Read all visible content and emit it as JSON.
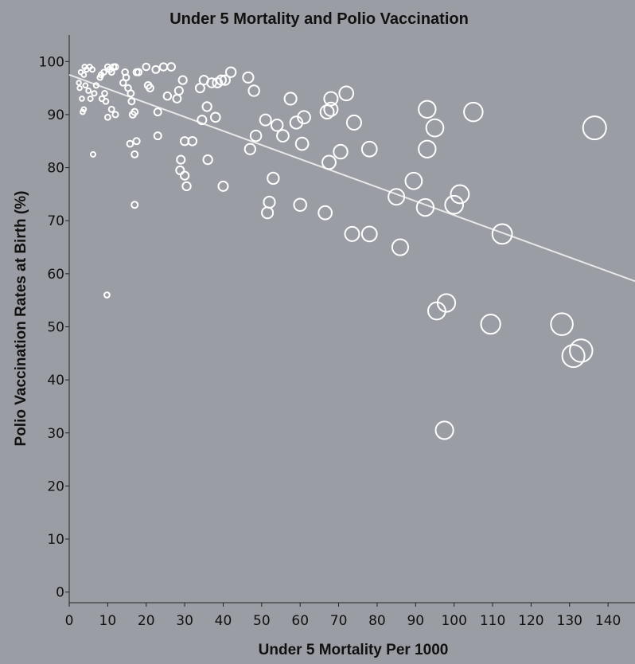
{
  "chart_data": {
    "type": "scatter",
    "title": "Under 5 Mortality and Polio Vaccination",
    "xlabel": "Under 5 Mortality Per 1000",
    "ylabel": "Polio Vaccination Rates at Birth (%)",
    "xlim": [
      0,
      147
    ],
    "ylim": [
      -2,
      105
    ],
    "x_ticks": [
      0,
      10,
      20,
      30,
      40,
      50,
      60,
      70,
      80,
      90,
      100,
      110,
      120,
      130,
      140
    ],
    "y_ticks": [
      0,
      10,
      20,
      30,
      40,
      50,
      60,
      70,
      80,
      90,
      100
    ],
    "grid": false,
    "marker": "hollow circle, size increases with x",
    "colors": {
      "background": "#9a9da4",
      "marker": "#ffffff",
      "trendline": "#e8e8e8",
      "text": "#111111"
    },
    "trendline": {
      "x": [
        0,
        147
      ],
      "y": [
        97.5,
        58.6
      ]
    },
    "points": [
      {
        "x": 2.5,
        "y": 96
      },
      {
        "x": 2.7,
        "y": 95
      },
      {
        "x": 3,
        "y": 98
      },
      {
        "x": 3.3,
        "y": 93
      },
      {
        "x": 3.8,
        "y": 97.5
      },
      {
        "x": 4,
        "y": 99
      },
      {
        "x": 4.2,
        "y": 95.5
      },
      {
        "x": 4.5,
        "y": 98.5
      },
      {
        "x": 5,
        "y": 94.5
      },
      {
        "x": 5.3,
        "y": 99
      },
      {
        "x": 5.5,
        "y": 93
      },
      {
        "x": 6,
        "y": 98.5
      },
      {
        "x": 6.5,
        "y": 94
      },
      {
        "x": 7,
        "y": 95.5
      },
      {
        "x": 8,
        "y": 97
      },
      {
        "x": 8.3,
        "y": 97.5
      },
      {
        "x": 8.5,
        "y": 93
      },
      {
        "x": 9,
        "y": 98
      },
      {
        "x": 9.2,
        "y": 94
      },
      {
        "x": 9.5,
        "y": 92.5
      },
      {
        "x": 10,
        "y": 99
      },
      {
        "x": 10.5,
        "y": 98.5
      },
      {
        "x": 11,
        "y": 98
      },
      {
        "x": 11.5,
        "y": 99
      },
      {
        "x": 12,
        "y": 99
      },
      {
        "x": 3.5,
        "y": 90.5
      },
      {
        "x": 3.8,
        "y": 91
      },
      {
        "x": 6.2,
        "y": 82.5
      },
      {
        "x": 8,
        "y": 97
      },
      {
        "x": 10,
        "y": 89.5
      },
      {
        "x": 11,
        "y": 91
      },
      {
        "x": 12,
        "y": 90
      },
      {
        "x": 9.8,
        "y": 56
      },
      {
        "x": 14,
        "y": 96
      },
      {
        "x": 14.5,
        "y": 98
      },
      {
        "x": 14.8,
        "y": 97
      },
      {
        "x": 15.3,
        "y": 95
      },
      {
        "x": 16,
        "y": 94
      },
      {
        "x": 16.5,
        "y": 90
      },
      {
        "x": 17,
        "y": 90.5
      },
      {
        "x": 17,
        "y": 82.5
      },
      {
        "x": 17.5,
        "y": 85
      },
      {
        "x": 17.5,
        "y": 98
      },
      {
        "x": 15.8,
        "y": 84.5
      },
      {
        "x": 17,
        "y": 73
      },
      {
        "x": 18,
        "y": 98
      },
      {
        "x": 16.2,
        "y": 92.5
      },
      {
        "x": 20,
        "y": 99
      },
      {
        "x": 20.5,
        "y": 95.5
      },
      {
        "x": 21,
        "y": 95
      },
      {
        "x": 22.5,
        "y": 98.5
      },
      {
        "x": 23,
        "y": 90.5
      },
      {
        "x": 23,
        "y": 86
      },
      {
        "x": 24.5,
        "y": 99
      },
      {
        "x": 25.5,
        "y": 93.5
      },
      {
        "x": 26.5,
        "y": 99
      },
      {
        "x": 28,
        "y": 93
      },
      {
        "x": 28.5,
        "y": 94.5
      },
      {
        "x": 29,
        "y": 81.5
      },
      {
        "x": 29.5,
        "y": 96.5
      },
      {
        "x": 28.8,
        "y": 79.5
      },
      {
        "x": 30,
        "y": 85
      },
      {
        "x": 30,
        "y": 78.5
      },
      {
        "x": 30.5,
        "y": 76.5
      },
      {
        "x": 32,
        "y": 85
      },
      {
        "x": 34,
        "y": 95
      },
      {
        "x": 34.5,
        "y": 89
      },
      {
        "x": 35,
        "y": 96.5
      },
      {
        "x": 35.8,
        "y": 91.5
      },
      {
        "x": 36,
        "y": 81.5
      },
      {
        "x": 37,
        "y": 96
      },
      {
        "x": 38,
        "y": 89.5
      },
      {
        "x": 38.5,
        "y": 96
      },
      {
        "x": 39.5,
        "y": 96.5
      },
      {
        "x": 40,
        "y": 76.5
      },
      {
        "x": 40.5,
        "y": 96.5
      },
      {
        "x": 42,
        "y": 98
      },
      {
        "x": 46.5,
        "y": 97
      },
      {
        "x": 47,
        "y": 83.5
      },
      {
        "x": 48,
        "y": 94.5
      },
      {
        "x": 48.5,
        "y": 86
      },
      {
        "x": 51,
        "y": 89
      },
      {
        "x": 51.5,
        "y": 71.5
      },
      {
        "x": 52,
        "y": 73.5
      },
      {
        "x": 53,
        "y": 78
      },
      {
        "x": 54,
        "y": 88
      },
      {
        "x": 55.5,
        "y": 86
      },
      {
        "x": 57.5,
        "y": 93
      },
      {
        "x": 59,
        "y": 88.5
      },
      {
        "x": 60,
        "y": 73
      },
      {
        "x": 60.5,
        "y": 84.5
      },
      {
        "x": 61,
        "y": 89.5
      },
      {
        "x": 66.5,
        "y": 71.5
      },
      {
        "x": 67,
        "y": 90.5
      },
      {
        "x": 67.5,
        "y": 81
      },
      {
        "x": 68,
        "y": 91
      },
      {
        "x": 68,
        "y": 93
      },
      {
        "x": 70.5,
        "y": 83
      },
      {
        "x": 72,
        "y": 94
      },
      {
        "x": 73.5,
        "y": 67.5
      },
      {
        "x": 74,
        "y": 88.5
      },
      {
        "x": 78,
        "y": 67.5
      },
      {
        "x": 78,
        "y": 83.5
      },
      {
        "x": 85,
        "y": 74.5
      },
      {
        "x": 86,
        "y": 65
      },
      {
        "x": 89.5,
        "y": 77.5
      },
      {
        "x": 92.5,
        "y": 72.5
      },
      {
        "x": 93,
        "y": 83.5
      },
      {
        "x": 93,
        "y": 91
      },
      {
        "x": 95,
        "y": 87.5
      },
      {
        "x": 95.5,
        "y": 53
      },
      {
        "x": 97.5,
        "y": 30.5
      },
      {
        "x": 98,
        "y": 54.5
      },
      {
        "x": 100,
        "y": 73
      },
      {
        "x": 101.5,
        "y": 75
      },
      {
        "x": 105,
        "y": 90.5
      },
      {
        "x": 109.5,
        "y": 50.5
      },
      {
        "x": 112.5,
        "y": 67.5
      },
      {
        "x": 128,
        "y": 50.5
      },
      {
        "x": 131,
        "y": 44.5
      },
      {
        "x": 133,
        "y": 45.5
      },
      {
        "x": 136.5,
        "y": 87.5
      }
    ]
  }
}
